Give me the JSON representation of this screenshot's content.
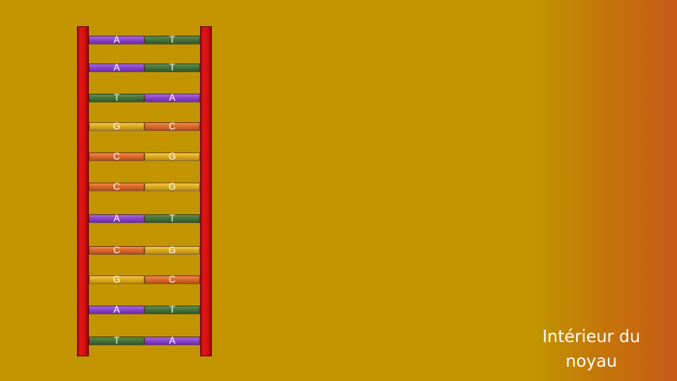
{
  "dna_ladder": {
    "rungs": [
      {
        "left": "A",
        "right": "T"
      },
      {
        "left": "A",
        "right": "T"
      },
      {
        "left": "T",
        "right": "A"
      },
      {
        "left": "G",
        "right": "C"
      },
      {
        "left": "C",
        "right": "G"
      },
      {
        "left": "C",
        "right": "G"
      },
      {
        "left": "A",
        "right": "T"
      },
      {
        "left": "C",
        "right": "G"
      },
      {
        "left": "G",
        "right": "C"
      },
      {
        "left": "A",
        "right": "T"
      },
      {
        "left": "T",
        "right": "A"
      }
    ]
  },
  "caption": {
    "line1": "Intérieur du",
    "line2": "noyau"
  },
  "colors": {
    "A": "#8c45cc",
    "T": "#47743a",
    "G": "#e0ab22",
    "C": "#dc6a2a",
    "backbone": "#d30f0f",
    "background": "#c29500"
  }
}
